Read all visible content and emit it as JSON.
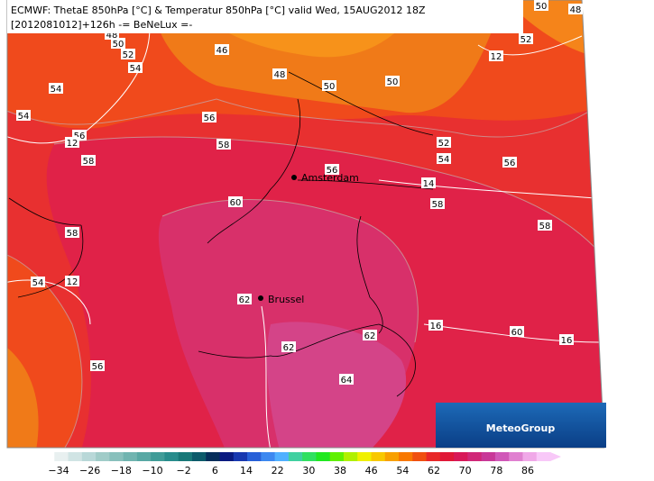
{
  "header": {
    "line1": "ECMWF: ThetaE 850hPa [°C] & Temperatur 850hPa [°C] valid Wed, 15AUG2012 18Z",
    "line2": "[2012081012]+126h -= BeNeLux =-"
  },
  "contour_labels": [
    "48",
    "50",
    "52",
    "54",
    "54",
    "54",
    "56",
    "12",
    "58",
    "46",
    "48",
    "50",
    "50",
    "52",
    "50",
    "48",
    "12",
    "56",
    "58",
    "52",
    "54",
    "56",
    "56",
    "14",
    "58",
    "60",
    "58",
    "58",
    "12",
    "54",
    "62",
    "62",
    "62",
    "16",
    "60",
    "16",
    "64",
    "56"
  ],
  "cities": [
    "Amsterdam",
    "Brussel"
  ],
  "logo": "MeteoGroup",
  "colorbar": {
    "labels": [
      "−34",
      "−26",
      "−18",
      "−10",
      "−2",
      "6",
      "14",
      "22",
      "30",
      "38",
      "46",
      "54",
      "62",
      "70",
      "78",
      "86"
    ],
    "colors": [
      "#ffffff",
      "#e8f0f0",
      "#d0e4e4",
      "#b8d8d8",
      "#a0ccc8",
      "#88c0bc",
      "#70b4b0",
      "#58a8a4",
      "#409c98",
      "#288c8c",
      "#187878",
      "#0c5a6a",
      "#062e5a",
      "#0a1a80",
      "#1838b0",
      "#2860d8",
      "#3c88f0",
      "#50b0ff",
      "#40d0a0",
      "#30e060",
      "#20e820",
      "#60f000",
      "#b0f000",
      "#f0f000",
      "#f8c800",
      "#f8a000",
      "#f87800",
      "#f05010",
      "#e82828",
      "#e01838",
      "#d81858",
      "#d02878",
      "#c83898",
      "#d058b8",
      "#e080d0",
      "#f0a8e8",
      "#f8c8f8"
    ]
  }
}
